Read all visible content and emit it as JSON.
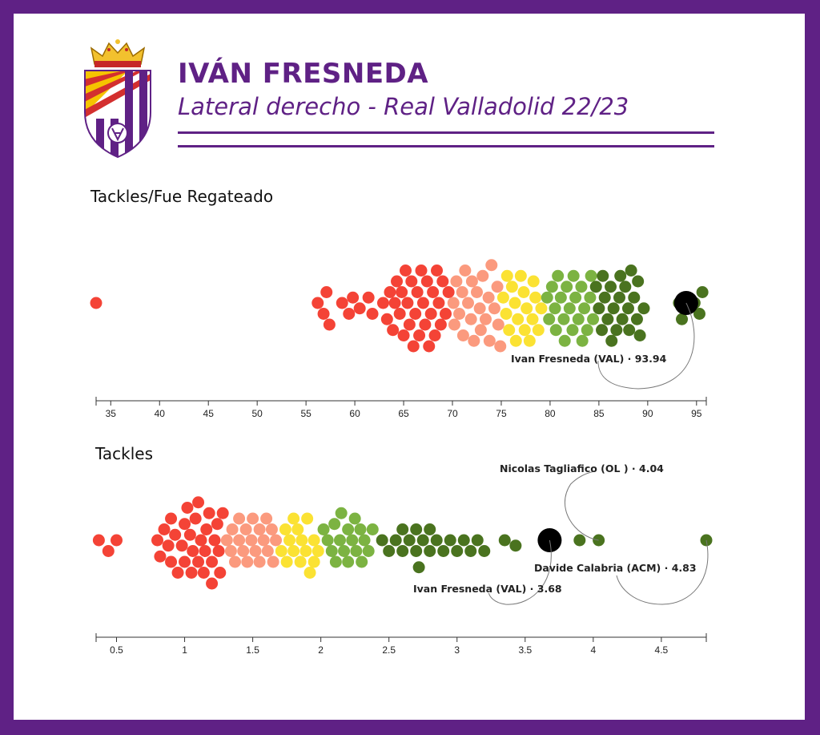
{
  "header": {
    "player_name": "IVÁN FRESNEDA",
    "subtitle": "Lateral derecho - Real Valladolid 22/23",
    "accent_color": "#5f2185",
    "crest_icon": "real-valladolid-crest"
  },
  "palette": [
    "#f44336",
    "#fb9a7e",
    "#fbe233",
    "#7cb342",
    "#4a731f"
  ],
  "highlight_color": "#000000",
  "chart_data": [
    {
      "type": "scatter",
      "subtype": "beeswarm",
      "title": "Tackles/Fue Regateado",
      "xlim": [
        33.5,
        96
      ],
      "ticks": [
        35,
        40,
        45,
        50,
        55,
        60,
        65,
        70,
        75,
        80,
        85,
        90,
        95
      ],
      "tick_labels": [
        "35",
        "40",
        "45",
        "50",
        "55",
        "60",
        "65",
        "70",
        "75",
        "80",
        "85",
        "90",
        "95"
      ],
      "grid": false,
      "color_bands": [
        {
          "from": 33.5,
          "to": 70,
          "color": "#f44336"
        },
        {
          "from": 70,
          "to": 75,
          "color": "#fb9a7e"
        },
        {
          "from": 75,
          "to": 79.5,
          "color": "#fbe233"
        },
        {
          "from": 79.5,
          "to": 84.5,
          "color": "#7cb342"
        },
        {
          "from": 84.5,
          "to": 96,
          "color": "#4a731f"
        }
      ],
      "points": [
        33.5,
        56.2,
        56.8,
        57.1,
        57.4,
        58.7,
        59.4,
        59.8,
        60.5,
        61.4,
        61.8,
        62.9,
        63.3,
        63.6,
        63.9,
        64.1,
        64.3,
        64.6,
        64.8,
        65.0,
        65.2,
        65.4,
        65.6,
        65.8,
        66.0,
        66.2,
        66.4,
        66.6,
        66.8,
        67.0,
        67.2,
        67.4,
        67.6,
        67.8,
        68.0,
        68.2,
        68.4,
        68.6,
        68.8,
        69.0,
        69.3,
        69.6,
        70.1,
        70.4,
        70.7,
        71.0,
        71.3,
        71.6,
        71.9,
        72.2,
        72.5,
        72.8,
        73.1,
        73.4,
        73.7,
        74.0,
        74.3,
        74.6,
        74.9,
        70.2,
        71.1,
        72.0,
        72.9,
        73.8,
        74.7,
        75.2,
        75.5,
        75.8,
        76.1,
        76.4,
        76.7,
        77.0,
        77.3,
        77.6,
        77.9,
        78.2,
        78.5,
        78.8,
        79.1,
        75.6,
        76.5,
        77.4,
        78.3,
        79.7,
        79.9,
        80.2,
        80.5,
        80.8,
        81.1,
        81.4,
        81.7,
        82.0,
        82.3,
        82.6,
        82.9,
        83.2,
        83.5,
        83.8,
        84.1,
        84.4,
        80.6,
        81.5,
        82.4,
        83.3,
        84.2,
        84.7,
        85.0,
        85.3,
        85.6,
        85.9,
        86.2,
        86.5,
        86.8,
        87.1,
        87.4,
        87.7,
        88.0,
        88.3,
        88.6,
        88.9,
        89.2,
        89.6,
        85.4,
        86.3,
        87.2,
        88.1,
        89.0,
        93.2,
        93.5,
        94.8,
        95.3,
        95.6
      ],
      "highlight": {
        "label": "Ivan Fresneda (VAL) · 93.94",
        "value": 93.94
      }
    },
    {
      "type": "scatter",
      "subtype": "beeswarm",
      "title": "Tackles",
      "xlim": [
        0.35,
        4.83
      ],
      "ticks": [
        0.5,
        1,
        1.5,
        2,
        2.5,
        3,
        3.5,
        4,
        4.5
      ],
      "tick_labels": [
        "0.5",
        "1",
        "1.5",
        "2",
        "2.5",
        "3",
        "3.5",
        "4",
        "4.5"
      ],
      "grid": false,
      "color_bands": [
        {
          "from": 0.3,
          "to": 1.3,
          "color": "#f44336"
        },
        {
          "from": 1.3,
          "to": 1.7,
          "color": "#fb9a7e"
        },
        {
          "from": 1.7,
          "to": 2.0,
          "color": "#fbe233"
        },
        {
          "from": 2.0,
          "to": 2.4,
          "color": "#7cb342"
        },
        {
          "from": 2.4,
          "to": 4.9,
          "color": "#4a731f"
        }
      ],
      "points": [
        0.37,
        0.44,
        0.5,
        0.8,
        0.82,
        0.85,
        0.88,
        0.9,
        0.93,
        0.95,
        0.98,
        1.0,
        1.02,
        1.04,
        1.06,
        1.08,
        1.1,
        1.12,
        1.14,
        1.16,
        1.18,
        1.2,
        1.22,
        1.24,
        1.26,
        1.28,
        0.9,
        1.0,
        1.1,
        1.2,
        1.05,
        1.15,
        1.25,
        1.31,
        1.34,
        1.37,
        1.4,
        1.43,
        1.46,
        1.49,
        1.52,
        1.55,
        1.58,
        1.61,
        1.64,
        1.67,
        1.35,
        1.45,
        1.55,
        1.65,
        1.4,
        1.5,
        1.6,
        1.71,
        1.74,
        1.77,
        1.8,
        1.83,
        1.86,
        1.89,
        1.92,
        1.95,
        1.98,
        1.75,
        1.85,
        1.95,
        1.8,
        1.9,
        2.02,
        2.05,
        2.08,
        2.11,
        2.14,
        2.17,
        2.2,
        2.23,
        2.26,
        2.29,
        2.32,
        2.35,
        2.38,
        2.1,
        2.2,
        2.3,
        2.15,
        2.25,
        2.45,
        2.5,
        2.55,
        2.6,
        2.65,
        2.7,
        2.75,
        2.8,
        2.85,
        2.9,
        2.95,
        3.0,
        3.05,
        3.1,
        3.15,
        3.2,
        2.6,
        2.7,
        2.8,
        2.72,
        3.35,
        3.43,
        3.9,
        4.04,
        4.83
      ],
      "highlights": [
        {
          "label": "Ivan Fresneda (VAL) · 3.68",
          "value": 3.68,
          "primary": true
        },
        {
          "label": "Nicolas Tagliafico (OL ) · 4.04",
          "value": 4.04,
          "primary": false
        },
        {
          "label": "Davide Calabria (ACM) · 4.83",
          "value": 4.83,
          "primary": false
        }
      ]
    }
  ]
}
